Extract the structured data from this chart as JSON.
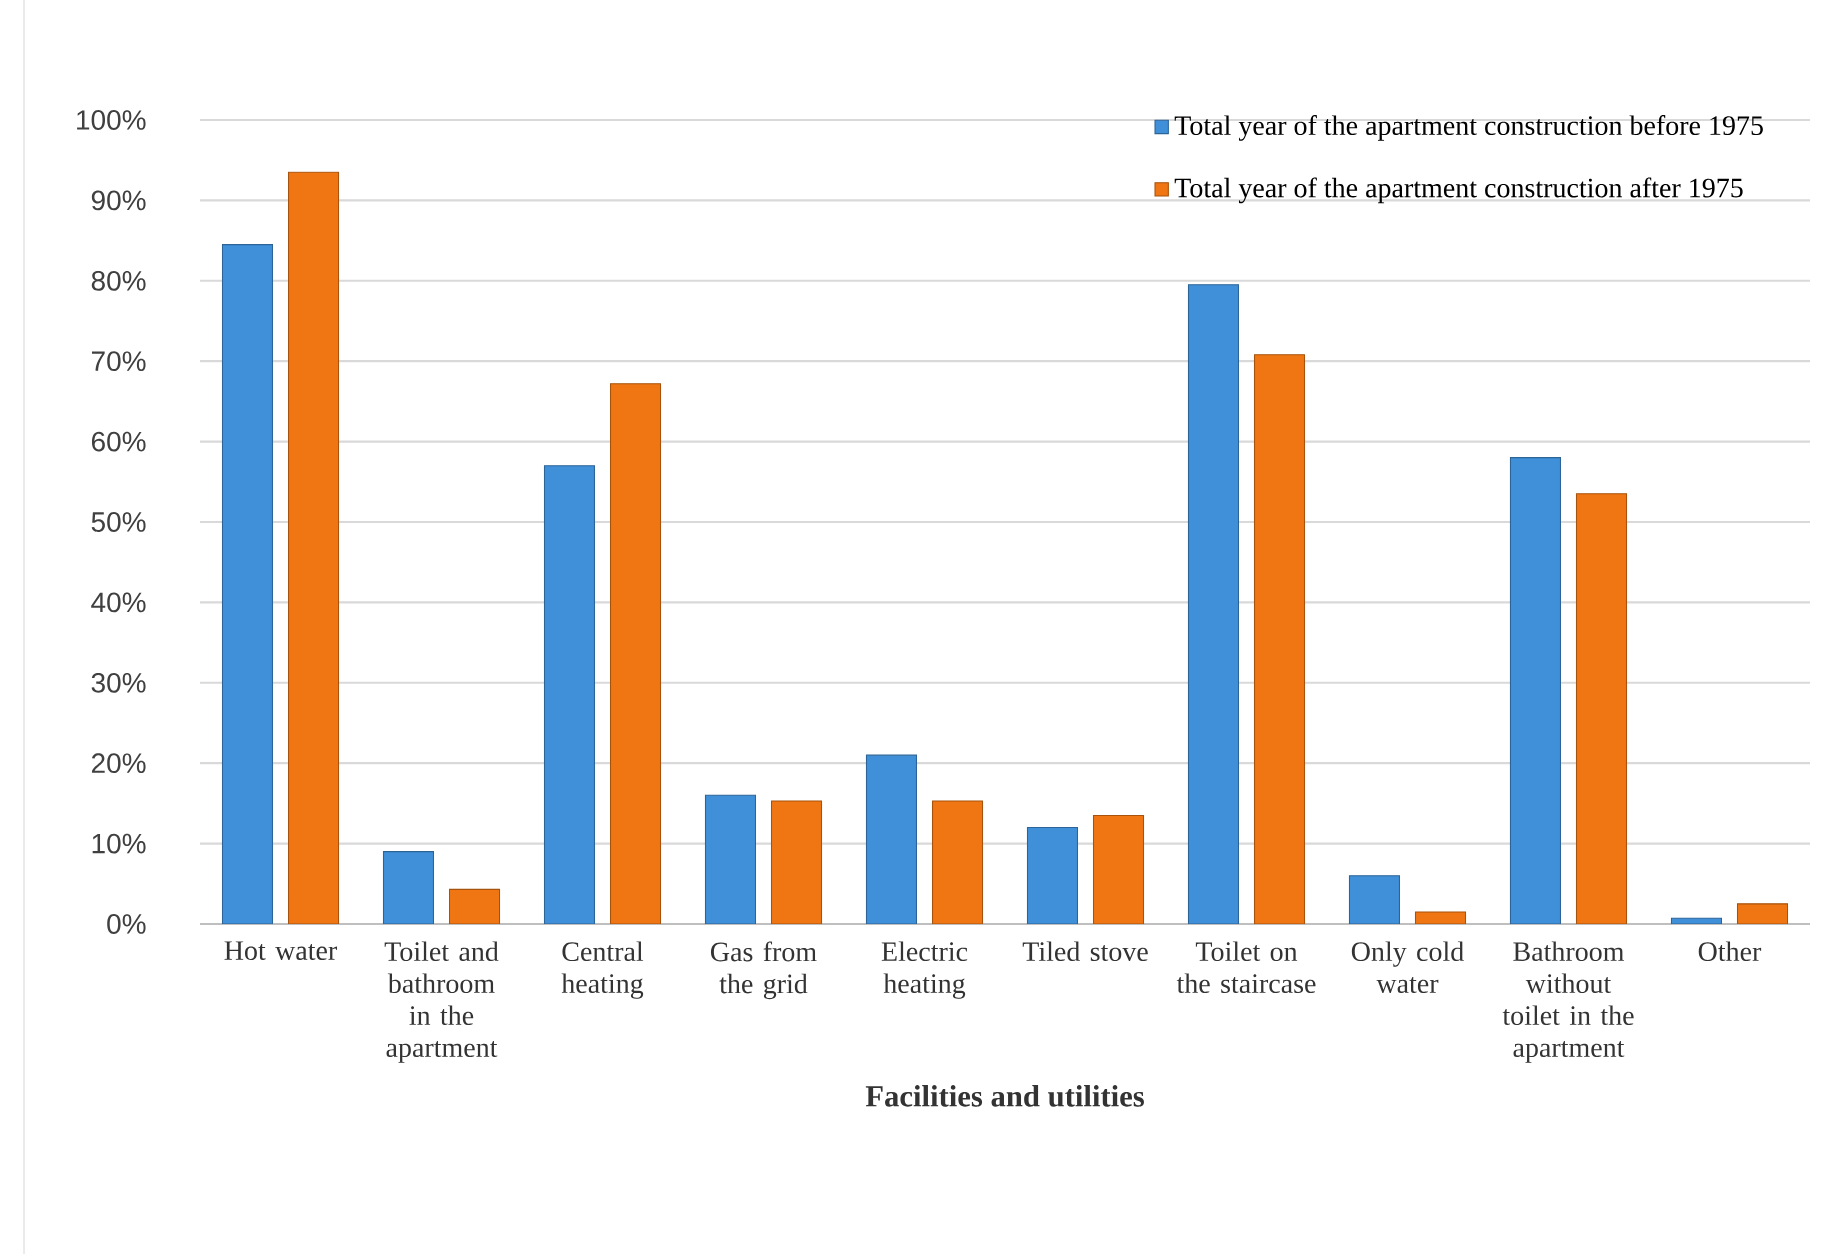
{
  "chart_data": {
    "type": "bar",
    "xlabel": "Facilities and utilities",
    "categories": [
      "Hot water",
      "Toilet and bathroom in the apartment",
      "Central heating",
      "Gas from the grid",
      "Electric heating",
      "Tiled stove",
      "Toilet on the staircase",
      "Only cold water",
      "Bathroom without toilet in the apartment",
      "Other"
    ],
    "series": [
      {
        "name": "Total year of the apartment construction before 1975",
        "color": "#3f8fd9",
        "values": [
          84.5,
          9,
          57,
          16,
          21,
          12,
          79.5,
          6,
          58,
          0.7
        ]
      },
      {
        "name": "Total year of the apartment construction after 1975",
        "color": "#f07613",
        "values": [
          93.5,
          4.3,
          67.2,
          15.3,
          15.3,
          13.5,
          70.8,
          1.5,
          53.5,
          2.5
        ]
      }
    ],
    "ylim": [
      0,
      100
    ],
    "yticks": [
      {
        "value": 0,
        "label": "0%"
      },
      {
        "value": 10,
        "label": "10%"
      },
      {
        "value": 20,
        "label": "20%"
      },
      {
        "value": 30,
        "label": "30%"
      },
      {
        "value": 40,
        "label": "40%"
      },
      {
        "value": 50,
        "label": "50%"
      },
      {
        "value": 60,
        "label": "60%"
      },
      {
        "value": 70,
        "label": "70%"
      },
      {
        "value": 80,
        "label": "80%"
      },
      {
        "value": 90,
        "label": "90%"
      },
      {
        "value": 100,
        "label": "100%"
      }
    ],
    "grid": "y",
    "legend": "top right"
  }
}
